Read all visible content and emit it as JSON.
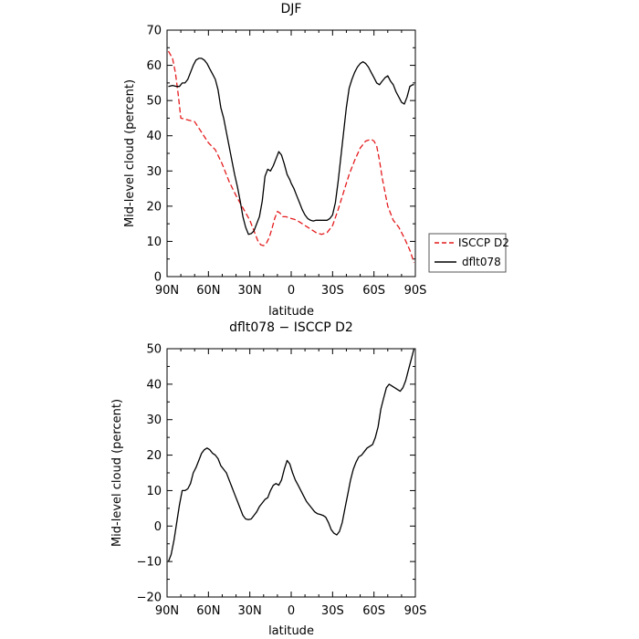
{
  "chart_data": [
    {
      "type": "line",
      "title": "DJF",
      "xlabel": "latitude",
      "ylabel": "Mid-level cloud (percent)",
      "xlim": [
        90,
        -90
      ],
      "ylim": [
        0,
        70
      ],
      "x_ticks": [
        90,
        60,
        30,
        0,
        -30,
        -60,
        -90
      ],
      "x_tick_labels": [
        "90N",
        "60N",
        "30N",
        "0",
        "30S",
        "60S",
        "90S"
      ],
      "y_ticks": [
        0,
        10,
        20,
        30,
        40,
        50,
        60,
        70
      ],
      "y_tick_labels": [
        "0",
        "10",
        "20",
        "30",
        "40",
        "50",
        "60",
        "70"
      ],
      "grid": false,
      "legend_position": "right",
      "series": [
        {
          "name": "ISCCP D2",
          "color": "#e41a1c",
          "dash": "dashed",
          "x": [
            89,
            86,
            84,
            82,
            80,
            75,
            70,
            65,
            60,
            55,
            50,
            45,
            40,
            35,
            30,
            27,
            24,
            22,
            20,
            18,
            16,
            14,
            12,
            10,
            8,
            6,
            4,
            2,
            0,
            -2,
            -4,
            -6,
            -8,
            -10,
            -14,
            -18,
            -22,
            -26,
            -30,
            -34,
            -38,
            -42,
            -46,
            -50,
            -54,
            -58,
            -60,
            -62,
            -64,
            -66,
            -70,
            -74,
            -78,
            -82,
            -86,
            -89
          ],
          "y": [
            64,
            62,
            58,
            52,
            45,
            44.5,
            44,
            41,
            38,
            36,
            32,
            27,
            23,
            19.5,
            16,
            13,
            10,
            9,
            8.8,
            9.5,
            11,
            13.5,
            16.5,
            18.5,
            18,
            17,
            17,
            16.8,
            16.5,
            16.3,
            16,
            15.5,
            15,
            14.5,
            13.5,
            12.5,
            12,
            12.5,
            14.5,
            19,
            24,
            29,
            33,
            36.5,
            38.5,
            39,
            38.5,
            37,
            33,
            28,
            20,
            16,
            14,
            11,
            7.5,
            4
          ]
        },
        {
          "name": "dflt078",
          "color": "#000000",
          "dash": "solid",
          "x": [
            89,
            86,
            83,
            81,
            79,
            77,
            75,
            73,
            71,
            69,
            67,
            65,
            63,
            61,
            59,
            57,
            55,
            53,
            51,
            49,
            47,
            45,
            43,
            41,
            39,
            37,
            35,
            33,
            31,
            29,
            27,
            25,
            23,
            21,
            19,
            17,
            15,
            13,
            11,
            9,
            7,
            5,
            3,
            1,
            0,
            -2,
            -4,
            -6,
            -8,
            -10,
            -12,
            -14,
            -16,
            -18,
            -20,
            -22,
            -24,
            -26,
            -28,
            -30,
            -32,
            -34,
            -36,
            -38,
            -40,
            -42,
            -44,
            -46,
            -48,
            -50,
            -52,
            -54,
            -56,
            -58,
            -60,
            -62,
            -64,
            -66,
            -68,
            -70,
            -72,
            -74,
            -76,
            -78,
            -80,
            -82,
            -84,
            -86,
            -88,
            -89
          ],
          "y": [
            54,
            54.3,
            54,
            54,
            55,
            55,
            56,
            58,
            60,
            61.5,
            62,
            62,
            61.5,
            60.5,
            59,
            57.5,
            56,
            53,
            48,
            45,
            41,
            37,
            33,
            29,
            25.5,
            21.5,
            17,
            14,
            12,
            12.2,
            13,
            15,
            17,
            21.5,
            28.5,
            30.5,
            30,
            31.5,
            33.5,
            35.5,
            34.5,
            32,
            29,
            27.5,
            26.5,
            25,
            23,
            21,
            19,
            17.5,
            16.5,
            16,
            15.8,
            16,
            16,
            16,
            16,
            16,
            16.5,
            17.5,
            21,
            27,
            34,
            41,
            48,
            53.5,
            56,
            58,
            59.5,
            60.5,
            61,
            60.5,
            59.5,
            58,
            56.5,
            55,
            54.5,
            55.5,
            56.5,
            57,
            55.5,
            54.5,
            52.5,
            51,
            49.5,
            49,
            51,
            54,
            54.5,
            54.5
          ]
        }
      ]
    },
    {
      "type": "line",
      "title": "dflt078 − ISCCP D2",
      "xlabel": "latitude",
      "ylabel": "Mid-level cloud (percent)",
      "xlim": [
        90,
        -90
      ],
      "ylim": [
        -20,
        50
      ],
      "x_ticks": [
        90,
        60,
        30,
        0,
        -30,
        -60,
        -90
      ],
      "x_tick_labels": [
        "90N",
        "60N",
        "30N",
        "0",
        "30S",
        "60S",
        "90S"
      ],
      "y_ticks": [
        -20,
        -10,
        0,
        10,
        20,
        30,
        40,
        50
      ],
      "y_tick_labels": [
        "−20",
        "−10",
        "0",
        "10",
        "20",
        "30",
        "40",
        "50"
      ],
      "grid": false,
      "series": [
        {
          "color": "#000000",
          "dash": "solid",
          "x": [
            89,
            87,
            85,
            83,
            81,
            79,
            77,
            75,
            73,
            71,
            69,
            67,
            65,
            63,
            61,
            59,
            57,
            55,
            53,
            51,
            49,
            47,
            45,
            43,
            41,
            39,
            37,
            35,
            33,
            31,
            29,
            27,
            25,
            23,
            21,
            19,
            17,
            15,
            13,
            11,
            9,
            7,
            5,
            3,
            1,
            -1,
            -3,
            -5,
            -7,
            -9,
            -11,
            -13,
            -15,
            -17,
            -19,
            -21,
            -23,
            -25,
            -27,
            -29,
            -31,
            -33,
            -35,
            -37,
            -39,
            -41,
            -43,
            -45,
            -47,
            -49,
            -51,
            -53,
            -55,
            -57,
            -59,
            -61,
            -63,
            -65,
            -67,
            -69,
            -71,
            -73,
            -75,
            -77,
            -79,
            -81,
            -83,
            -85,
            -87,
            -89
          ],
          "y": [
            -10,
            -8,
            -4,
            1,
            6,
            10,
            10,
            10.5,
            12,
            15,
            16.5,
            18.5,
            20.5,
            21.5,
            22,
            21.5,
            20.5,
            20,
            19,
            17,
            16,
            15,
            13,
            11,
            9,
            7,
            5,
            3,
            2,
            1.8,
            2,
            3,
            4,
            5.5,
            6.5,
            7.5,
            8,
            10,
            11.5,
            12,
            11.5,
            13,
            16,
            18.5,
            17.5,
            15,
            13,
            11.5,
            10,
            8.5,
            7,
            6,
            5,
            4,
            3.5,
            3.3,
            3,
            2.5,
            1,
            -1,
            -2,
            -2.5,
            -1.5,
            1,
            5,
            9,
            13,
            16,
            18,
            19.5,
            20,
            21,
            22,
            22.5,
            23,
            25,
            28,
            33,
            36,
            39,
            40,
            39.5,
            39,
            38.5,
            38,
            39,
            41,
            44,
            47,
            50
          ]
        }
      ]
    }
  ]
}
